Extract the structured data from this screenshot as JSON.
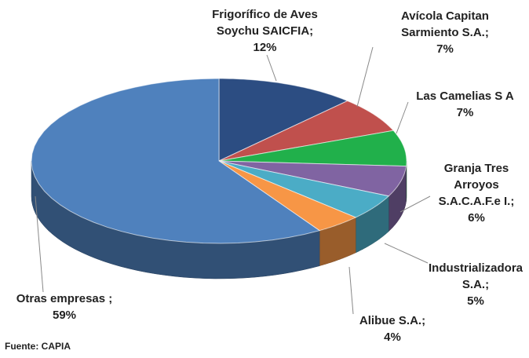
{
  "chart_data": {
    "type": "pie",
    "style": "3d",
    "categories": [
      "Frigorífico de Aves Soychu SAICFIA;",
      "Avícola  Capitan Sarmiento S.A.;",
      "Las Camelias S A",
      "Granja Tres Arroyos S.A.C.A.F.e I.;",
      "Industrializadora S.A.;",
      "Alibue S.A.;",
      "Otras empresas ;"
    ],
    "values": [
      12,
      7,
      7,
      6,
      5,
      4,
      59
    ],
    "value_labels": [
      "12%",
      "7%",
      "7%",
      "6%",
      "5%",
      "4%",
      "59%"
    ],
    "colors": [
      "#2c4d82",
      "#c0504d",
      "#21b04b",
      "#8064a2",
      "#4bacc6",
      "#f79646",
      "#4f81bd"
    ],
    "source": "Fuente: CAPIA"
  }
}
